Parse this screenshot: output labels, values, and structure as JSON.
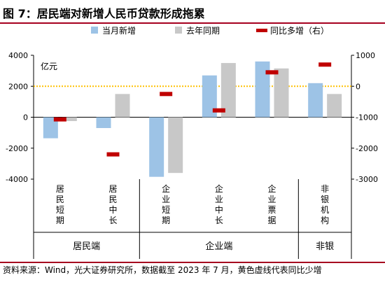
{
  "header": {
    "title": "图 7：居民端对新增人民币贷款形成拖累"
  },
  "footer": {
    "source": "资料来源：Wind，光大证券研究所，数据截至 2023 年 7 月，黄色虚线代表同比少增"
  },
  "colors": {
    "current": "#9dc3e6",
    "last_year": "#c8c8c8",
    "yoy": "#c00000",
    "zero_line": "#ffc000",
    "border": "#a6001f"
  },
  "chart_data": {
    "type": "bar",
    "unit_label": "亿元",
    "legend": [
      "当月新增",
      "去年同期",
      "同比多增（右）"
    ],
    "legend_position": "top",
    "categories": [
      "居民短期",
      "居民中长",
      "企业短期",
      "企业中长",
      "企业票据",
      "非银机构"
    ],
    "category_labels": [
      [
        "居",
        "民",
        "短",
        "期"
      ],
      [
        "居",
        "民",
        "中",
        "长"
      ],
      [
        "企",
        "业",
        "短",
        "期"
      ],
      [
        "企",
        "业",
        "中",
        "长"
      ],
      [
        "企",
        "业",
        "票",
        "据"
      ],
      [
        "非",
        "银",
        "机",
        "构"
      ]
    ],
    "groups": [
      {
        "label": "居民端",
        "span": [
          0,
          1
        ]
      },
      {
        "label": "企业端",
        "span": [
          2,
          4
        ]
      },
      {
        "label": "非银",
        "span": [
          5,
          5
        ]
      }
    ],
    "series": [
      {
        "name": "当月新增",
        "axis": "left",
        "type": "bar",
        "values": [
          -1360,
          -700,
          -3850,
          2700,
          3600,
          2200
        ]
      },
      {
        "name": "去年同期",
        "axis": "left",
        "type": "bar",
        "values": [
          -250,
          1500,
          -3600,
          3500,
          3150,
          1500
        ]
      },
      {
        "name": "同比多增（右）",
        "axis": "right",
        "type": "marker",
        "values": [
          -1070,
          -2200,
          -250,
          -780,
          450,
          700
        ]
      }
    ],
    "y_left": {
      "min": -4000,
      "max": 4000,
      "ticks": [
        4000,
        2000,
        0,
        -2000,
        -4000
      ]
    },
    "y_right": {
      "min": -3000,
      "max": 1000,
      "ticks": [
        1000,
        0,
        -1000,
        -2000,
        -3000
      ]
    },
    "reference_line": {
      "axis": "right",
      "value": 0,
      "style": "dotted"
    }
  }
}
